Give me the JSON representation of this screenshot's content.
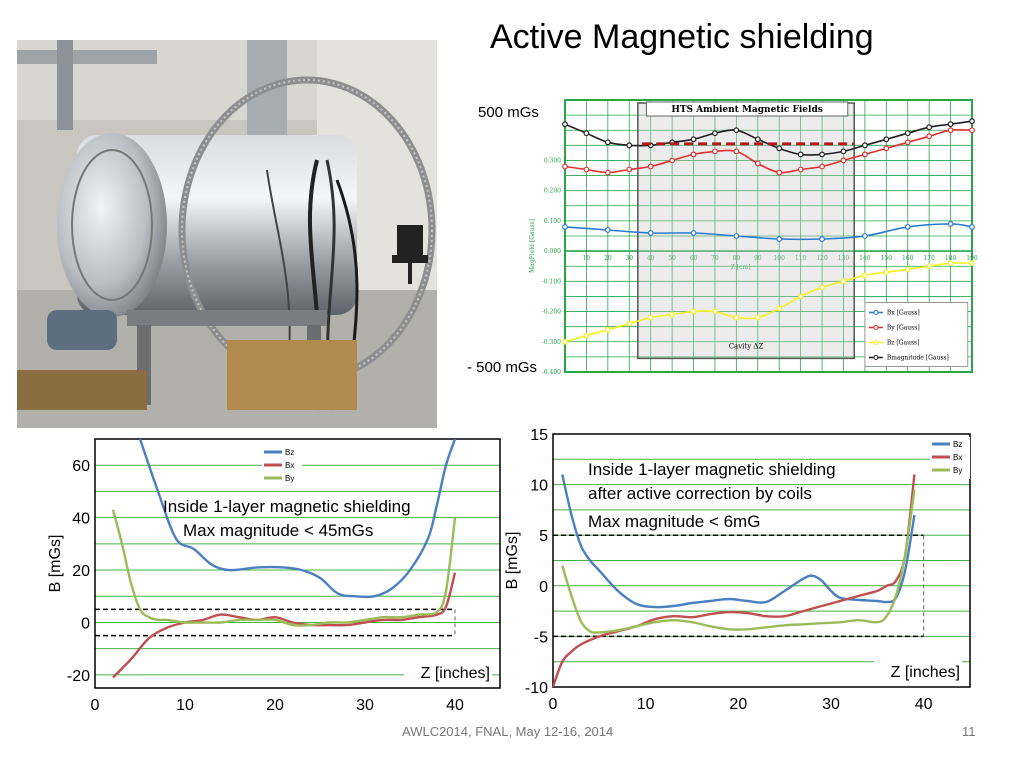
{
  "slide": {
    "title": "Active Magnetic shielding",
    "footer": "AWLC2014, FNAL, May 12-16, 2014",
    "page_number": "11"
  },
  "top_chart": {
    "upper_label": "500 mGs",
    "lower_label": "- 500 mGs"
  },
  "bottom_left": {
    "annotation_line1": "Inside 1-layer magnetic shielding",
    "annotation_line2": "Max magnitude < 45mGs"
  },
  "bottom_right": {
    "annotation_line1": "Inside 1-layer magnetic shielding",
    "annotation_line2": "after active correction by coils",
    "annotation_line3": "Max magnitude  < 6mG"
  },
  "chart_data": [
    {
      "type": "line",
      "title": "HTS Ambient Magnetic Fields",
      "xlabel": "Z [cm]",
      "ylabel": "MagField [Gauss]",
      "xlim": [
        0,
        190
      ],
      "ylim": [
        -0.4,
        0.5
      ],
      "grid": true,
      "legend": "bottom-right",
      "x_ticks": [
        "10",
        "20",
        "30",
        "40",
        "50",
        "60",
        "70",
        "80",
        "90",
        "100",
        "110",
        "120",
        "130",
        "140",
        "150",
        "160",
        "170",
        "180",
        "190"
      ],
      "y_ticks": [
        "0.300",
        "0.200",
        "0.100",
        "0.000",
        "-0.100",
        "-0.200",
        "-0.300",
        "-0.400"
      ],
      "box_label": "Cavity  ΔZ",
      "series": [
        {
          "name": "Bx [Gauss]",
          "color": "#2b7bd0",
          "x": [
            0,
            20,
            40,
            60,
            80,
            100,
            120,
            140,
            160,
            180,
            190
          ],
          "values": [
            0.08,
            0.07,
            0.06,
            0.06,
            0.05,
            0.04,
            0.04,
            0.05,
            0.08,
            0.09,
            0.08
          ]
        },
        {
          "name": "By [Gauss]",
          "color": "#e03030",
          "x": [
            0,
            10,
            20,
            30,
            40,
            50,
            60,
            70,
            80,
            90,
            100,
            110,
            120,
            130,
            140,
            150,
            160,
            170,
            180,
            190
          ],
          "values": [
            0.28,
            0.27,
            0.26,
            0.27,
            0.28,
            0.3,
            0.32,
            0.33,
            0.33,
            0.29,
            0.26,
            0.27,
            0.28,
            0.3,
            0.32,
            0.34,
            0.36,
            0.38,
            0.4,
            0.4
          ]
        },
        {
          "name": "Bz [Gauss]",
          "color": "#f5f01e",
          "x": [
            0,
            10,
            20,
            30,
            40,
            50,
            60,
            70,
            80,
            90,
            100,
            110,
            120,
            130,
            140,
            150,
            160,
            170,
            180,
            190
          ],
          "values": [
            -0.3,
            -0.28,
            -0.26,
            -0.24,
            -0.22,
            -0.21,
            -0.2,
            -0.2,
            -0.22,
            -0.22,
            -0.19,
            -0.15,
            -0.12,
            -0.1,
            -0.08,
            -0.07,
            -0.06,
            -0.05,
            -0.04,
            -0.04
          ]
        },
        {
          "name": "Bmagnitude [Gauss]",
          "color": "#222222",
          "x": [
            0,
            10,
            20,
            30,
            40,
            50,
            60,
            70,
            80,
            90,
            100,
            110,
            120,
            130,
            140,
            150,
            160,
            170,
            180,
            190
          ],
          "values": [
            0.42,
            0.39,
            0.36,
            0.35,
            0.35,
            0.36,
            0.37,
            0.39,
            0.4,
            0.37,
            0.34,
            0.32,
            0.32,
            0.33,
            0.35,
            0.37,
            0.39,
            0.41,
            0.42,
            0.43
          ]
        }
      ]
    },
    {
      "type": "line",
      "title": "",
      "xlabel": "Z [inches]",
      "ylabel": "B [mGs]",
      "xlim": [
        0,
        45
      ],
      "ylim": [
        -25,
        70
      ],
      "grid": true,
      "legend": "top-right",
      "x_ticks": [
        "0",
        "10",
        "20",
        "30",
        "40"
      ],
      "y_ticks": [
        "60",
        "40",
        "20",
        "0",
        "-20"
      ],
      "threshold_lines": [
        5,
        -5
      ],
      "series": [
        {
          "name": "Bz",
          "color": "#4a7fc0",
          "x": [
            5,
            7,
            9,
            11,
            13,
            15,
            18,
            21,
            23,
            25,
            27,
            29,
            31,
            33,
            35,
            37,
            38,
            39,
            40
          ],
          "values": [
            70,
            50,
            32,
            28,
            22,
            20,
            21,
            21,
            20,
            17,
            11,
            10,
            10,
            13,
            20,
            32,
            45,
            60,
            70
          ]
        },
        {
          "name": "Bx",
          "color": "#c0504d",
          "x": [
            2,
            4,
            6,
            8,
            10,
            12,
            14,
            16,
            18,
            20,
            22,
            24,
            26,
            28,
            30,
            32,
            34,
            36,
            38,
            39,
            40
          ],
          "values": [
            -21,
            -14,
            -6,
            -2,
            0,
            1,
            3,
            2,
            1,
            2,
            0,
            -1,
            -1,
            -1,
            0,
            1,
            1,
            2,
            3,
            6,
            19
          ]
        },
        {
          "name": "By",
          "color": "#9bbb59",
          "x": [
            2,
            3,
            4,
            5,
            6,
            7,
            8,
            10,
            12,
            14,
            16,
            18,
            20,
            22,
            24,
            26,
            28,
            30,
            32,
            34,
            36,
            38,
            39,
            40
          ],
          "values": [
            43,
            30,
            15,
            5,
            2,
            1,
            1,
            0,
            0,
            0,
            1,
            1,
            1,
            -1,
            -1,
            0,
            0,
            1,
            2,
            2,
            3,
            4,
            12,
            40
          ]
        }
      ]
    },
    {
      "type": "line",
      "title": "",
      "xlabel": "Z [inches]",
      "ylabel": "B [mGs]",
      "xlim": [
        0,
        45
      ],
      "ylim": [
        -10,
        15
      ],
      "grid": true,
      "legend": "top-right",
      "y_ticks": [
        "15",
        "10",
        "5",
        "0",
        "-5",
        "-10"
      ],
      "x_ticks": [
        "0",
        "10",
        "20",
        "30",
        "40"
      ],
      "threshold_lines": [
        5,
        -5
      ],
      "series": [
        {
          "name": "Bz",
          "color": "#4a7fc0",
          "x": [
            1,
            2,
            3,
            4,
            5,
            7,
            9,
            11,
            13,
            15,
            17,
            19,
            21,
            23,
            25,
            27,
            28,
            29,
            30,
            31,
            33,
            35,
            36,
            37,
            38,
            39
          ],
          "values": [
            11,
            7,
            4,
            2.5,
            1.5,
            -0.5,
            -1.8,
            -2.1,
            -2,
            -1.7,
            -1.5,
            -1.3,
            -1.5,
            -1.6,
            -0.5,
            0.7,
            1,
            0.5,
            -0.5,
            -1.2,
            -1.4,
            -1.5,
            -1.6,
            -1.2,
            1.5,
            7
          ]
        },
        {
          "name": "Bx",
          "color": "#c0504d",
          "x": [
            0,
            1,
            2,
            3,
            5,
            7,
            9,
            11,
            13,
            15,
            17,
            19,
            21,
            23,
            25,
            27,
            29,
            31,
            33,
            35,
            36,
            37,
            38,
            39
          ],
          "values": [
            -10,
            -7.5,
            -6.5,
            -5.8,
            -5,
            -4.5,
            -4,
            -3.3,
            -3,
            -3.1,
            -2.8,
            -2.6,
            -2.7,
            -3,
            -3,
            -2.5,
            -2,
            -1.5,
            -1,
            -0.5,
            0,
            0.5,
            3,
            11
          ]
        },
        {
          "name": "By",
          "color": "#9bbb59",
          "x": [
            1,
            2,
            3,
            4,
            5,
            7,
            9,
            11,
            13,
            15,
            17,
            19,
            21,
            23,
            25,
            27,
            29,
            31,
            33,
            35,
            36,
            37,
            38,
            39
          ],
          "values": [
            2,
            -1,
            -3.5,
            -4.5,
            -4.6,
            -4.4,
            -4,
            -3.6,
            -3.4,
            -3.6,
            -4,
            -4.3,
            -4.3,
            -4.1,
            -3.9,
            -3.8,
            -3.7,
            -3.6,
            -3.4,
            -3.6,
            -3,
            -1,
            3,
            9.5
          ]
        }
      ]
    }
  ]
}
